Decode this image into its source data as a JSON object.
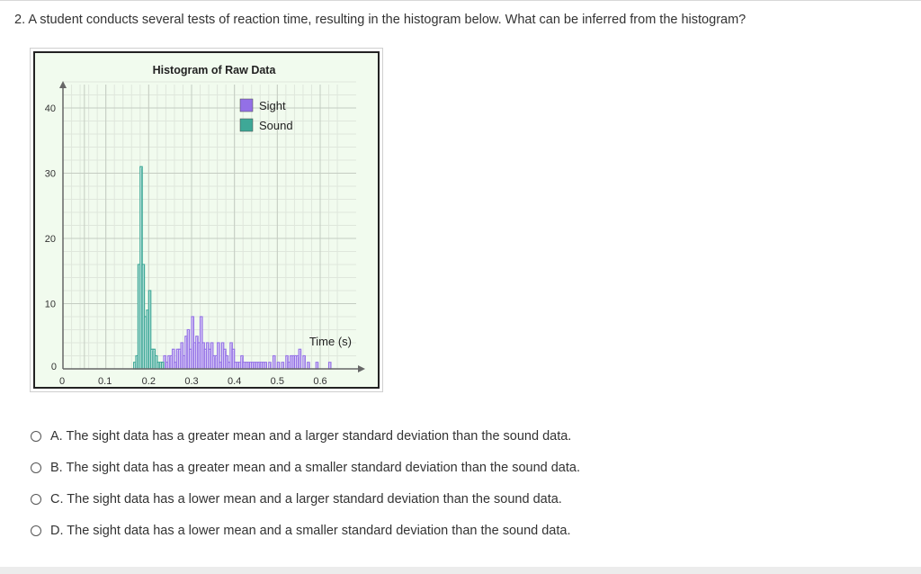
{
  "question": {
    "text": "2. A student conducts several tests of reaction time, resulting in the histogram below. What can be inferred from the histogram?"
  },
  "chart_data": {
    "type": "bar",
    "title": "Histogram of Raw Data",
    "xlabel": "Time (s)",
    "ylabel": "",
    "xlim": [
      0,
      0.65
    ],
    "ylim": [
      0,
      40
    ],
    "x_ticks": [
      "0",
      "0.1",
      "0.2",
      "0.3",
      "0.4",
      "0.5",
      "0.6"
    ],
    "x_tick_values": [
      0,
      0.1,
      0.2,
      0.3,
      0.4,
      0.5,
      0.6
    ],
    "y_ticks": [
      "0",
      "10",
      "20",
      "30",
      "40"
    ],
    "y_tick_values": [
      0,
      10,
      20,
      30,
      40
    ],
    "grid": true,
    "legend_position": "top-right",
    "bin_width": 0.005,
    "series": [
      {
        "name": "Sight",
        "color": "#9370e6",
        "bins": [
          [
            0.23,
            1
          ],
          [
            0.235,
            2
          ],
          [
            0.24,
            1
          ],
          [
            0.245,
            2
          ],
          [
            0.25,
            2
          ],
          [
            0.255,
            3
          ],
          [
            0.26,
            1
          ],
          [
            0.265,
            3
          ],
          [
            0.27,
            3
          ],
          [
            0.275,
            4
          ],
          [
            0.28,
            2
          ],
          [
            0.285,
            5
          ],
          [
            0.29,
            6
          ],
          [
            0.295,
            3
          ],
          [
            0.3,
            8
          ],
          [
            0.305,
            4
          ],
          [
            0.31,
            5
          ],
          [
            0.315,
            4
          ],
          [
            0.32,
            8
          ],
          [
            0.325,
            4
          ],
          [
            0.33,
            3
          ],
          [
            0.335,
            4
          ],
          [
            0.34,
            3
          ],
          [
            0.345,
            4
          ],
          [
            0.35,
            2
          ],
          [
            0.355,
            2
          ],
          [
            0.36,
            4
          ],
          [
            0.365,
            1
          ],
          [
            0.37,
            4
          ],
          [
            0.375,
            3
          ],
          [
            0.38,
            2
          ],
          [
            0.385,
            1
          ],
          [
            0.39,
            4
          ],
          [
            0.395,
            3
          ],
          [
            0.4,
            1
          ],
          [
            0.405,
            1
          ],
          [
            0.41,
            1
          ],
          [
            0.415,
            2
          ],
          [
            0.42,
            1
          ],
          [
            0.425,
            1
          ],
          [
            0.43,
            1
          ],
          [
            0.435,
            1
          ],
          [
            0.44,
            1
          ],
          [
            0.445,
            1
          ],
          [
            0.45,
            1
          ],
          [
            0.455,
            1
          ],
          [
            0.46,
            1
          ],
          [
            0.465,
            1
          ],
          [
            0.47,
            1
          ],
          [
            0.48,
            1
          ],
          [
            0.49,
            2
          ],
          [
            0.5,
            1
          ],
          [
            0.51,
            1
          ],
          [
            0.52,
            2
          ],
          [
            0.525,
            1
          ],
          [
            0.53,
            2
          ],
          [
            0.535,
            2
          ],
          [
            0.54,
            2
          ],
          [
            0.545,
            2
          ],
          [
            0.55,
            3
          ],
          [
            0.56,
            2
          ],
          [
            0.57,
            1
          ],
          [
            0.59,
            1
          ],
          [
            0.62,
            1
          ]
        ]
      },
      {
        "name": "Sound",
        "color": "#3ea897",
        "bins": [
          [
            0.165,
            1
          ],
          [
            0.17,
            2
          ],
          [
            0.175,
            16
          ],
          [
            0.18,
            31
          ],
          [
            0.185,
            16
          ],
          [
            0.19,
            8
          ],
          [
            0.195,
            9
          ],
          [
            0.2,
            12
          ],
          [
            0.205,
            3
          ],
          [
            0.21,
            3
          ],
          [
            0.215,
            2
          ],
          [
            0.22,
            1
          ],
          [
            0.225,
            1
          ],
          [
            0.23,
            1
          ]
        ]
      }
    ]
  },
  "answers": [
    {
      "label": "A. The sight data has a greater mean and a larger standard deviation than the sound data."
    },
    {
      "label": "B. The sight data has a greater mean and a smaller standard deviation than the sound data."
    },
    {
      "label": "C. The sight data has a lower mean and a larger standard deviation than the sound data."
    },
    {
      "label": "D. The sight data has a lower mean and a smaller standard deviation than the sound data."
    }
  ]
}
